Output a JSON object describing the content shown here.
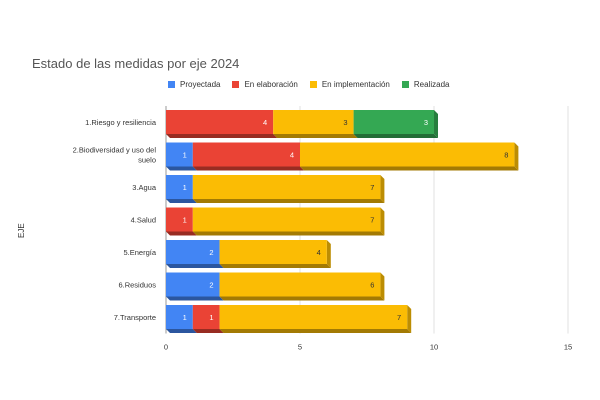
{
  "chart_data": {
    "type": "bar",
    "orientation": "horizontal",
    "stacked": true,
    "title": "Estado de las medidas por eje 2024",
    "ylabel": "EJE",
    "xlabel": "",
    "xlim": [
      0,
      15
    ],
    "xticks": [
      "0",
      "5",
      "10",
      "15"
    ],
    "grid": true,
    "legend_position": "top",
    "categories": [
      [
        "1.Riesgo y resiliencia"
      ],
      [
        "2.Biodiversidad y uso del",
        "suelo"
      ],
      [
        "3.Agua"
      ],
      [
        "4.Salud"
      ],
      [
        "5.Energía"
      ],
      [
        "6.Residuos"
      ],
      [
        "7.Transporte"
      ]
    ],
    "series": [
      {
        "name": "Proyectada",
        "color": "#4285f4",
        "values": [
          0,
          1,
          1,
          0,
          2,
          2,
          1
        ]
      },
      {
        "name": "En elaboración",
        "color": "#ea4335",
        "values": [
          4,
          4,
          0,
          1,
          0,
          0,
          1
        ]
      },
      {
        "name": "En implementación",
        "color": "#fbbc04",
        "values": [
          3,
          8,
          7,
          7,
          4,
          6,
          7
        ]
      },
      {
        "name": "Realizada",
        "color": "#34a853",
        "values": [
          3,
          0,
          0,
          0,
          0,
          0,
          0
        ]
      }
    ]
  }
}
